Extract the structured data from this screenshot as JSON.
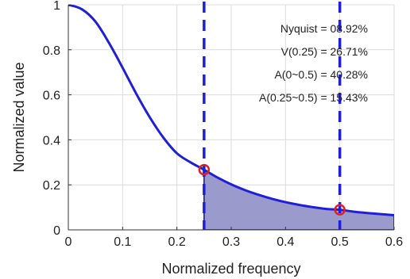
{
  "chart_data": {
    "type": "line",
    "xlabel": "Normalized frequency",
    "ylabel": "Normalized value",
    "xlim": [
      0,
      0.6
    ],
    "ylim": [
      0,
      1
    ],
    "x_ticks": [
      0,
      0.1,
      0.2,
      0.3,
      0.4,
      0.5,
      0.6
    ],
    "x_tick_labels": [
      "0",
      "0.1",
      "0.2",
      "0.3",
      "0.4",
      "0.5",
      "0.6"
    ],
    "y_ticks": [
      0,
      0.2,
      0.4,
      0.6,
      0.8,
      1
    ],
    "y_tick_labels": [
      "0",
      "0.2",
      "0.4",
      "0.6",
      "0.8",
      "1"
    ],
    "grid": true,
    "curve": {
      "color": "#1f1fd6",
      "x": [
        0,
        0.025,
        0.05,
        0.075,
        0.1,
        0.125,
        0.15,
        0.175,
        0.2,
        0.225,
        0.25,
        0.275,
        0.3,
        0.325,
        0.35,
        0.375,
        0.4,
        0.425,
        0.45,
        0.475,
        0.5,
        0.525,
        0.55,
        0.575,
        0.6
      ],
      "y": [
        1.0,
        0.98,
        0.925,
        0.83,
        0.72,
        0.605,
        0.5,
        0.41,
        0.34,
        0.3,
        0.2671,
        0.232,
        0.202,
        0.177,
        0.156,
        0.138,
        0.123,
        0.111,
        0.101,
        0.093,
        0.0892,
        0.081,
        0.075,
        0.07,
        0.065
      ]
    },
    "shaded_region": {
      "x_range": [
        0.25,
        0.6
      ],
      "fill": "#9a9acd"
    },
    "vertical_lines": [
      {
        "x": 0.25,
        "color": "#1f1fd6",
        "style": "dashed"
      },
      {
        "x": 0.5,
        "color": "#1f1fd6",
        "style": "dashed"
      }
    ],
    "markers": [
      {
        "x": 0.25,
        "y": 0.2671,
        "color": "#e02020"
      },
      {
        "x": 0.5,
        "y": 0.0892,
        "color": "#e02020"
      }
    ],
    "annotations": [
      "Nyquist = 08.92%",
      "V(0.25) = 26.71%",
      "A(0~0.5) = 40.28%",
      "A(0.25~0.5) = 15.43%"
    ]
  }
}
